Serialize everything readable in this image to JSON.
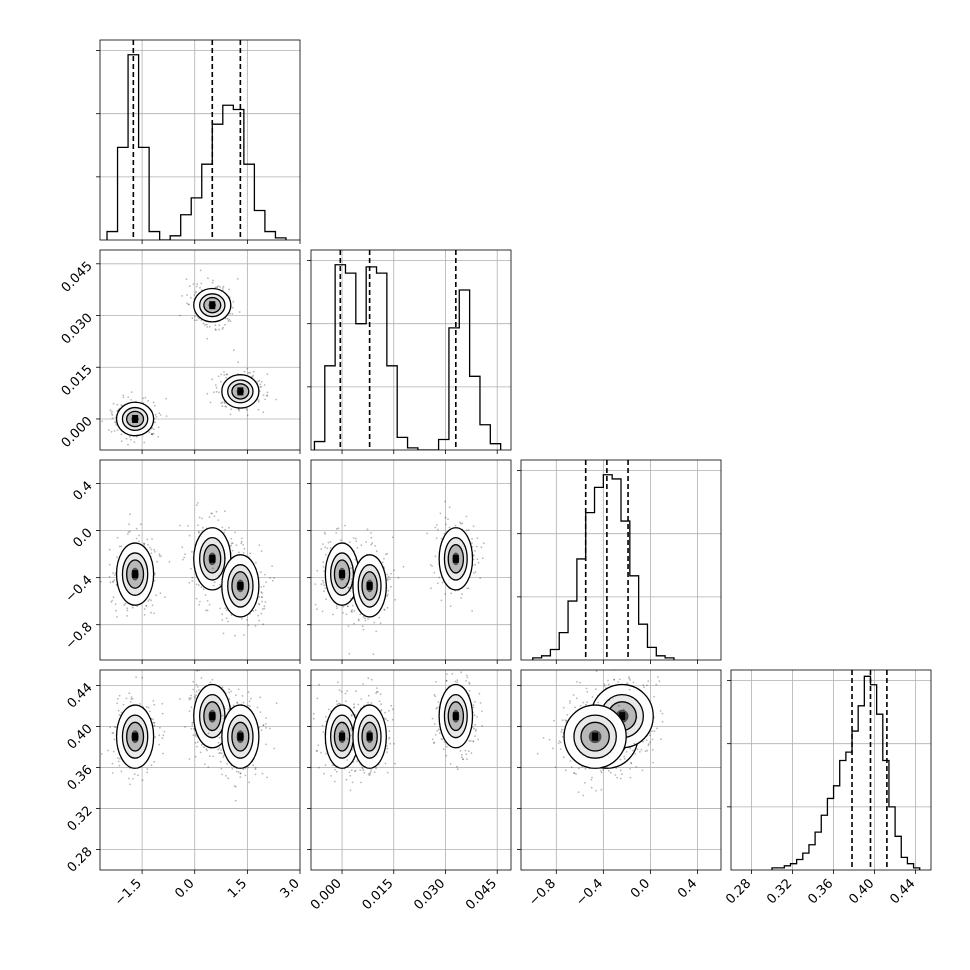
{
  "chart_data": {
    "type": "corner",
    "grid": true,
    "params": [
      {
        "range": [
          -2.7,
          3.0
        ],
        "ticks": [
          -1.5,
          0.0,
          1.5,
          3.0
        ],
        "tick_labels": [
          "−1.5",
          "0.0",
          "1.5",
          "3.0"
        ]
      },
      {
        "range": [
          -0.009,
          0.049
        ],
        "ticks": [
          0.0,
          0.015,
          0.03,
          0.045
        ],
        "tick_labels": [
          "0.000",
          "0.015",
          "0.030",
          "0.045"
        ]
      },
      {
        "range": [
          -1.1,
          0.6
        ],
        "ticks": [
          -0.8,
          -0.4,
          0.0,
          0.4
        ],
        "tick_labels": [
          "−0.8",
          "−0.4",
          "0.0",
          "0.4"
        ]
      },
      {
        "range": [
          0.26,
          0.455
        ],
        "ticks": [
          0.28,
          0.32,
          0.36,
          0.4,
          0.44
        ],
        "tick_labels": [
          "0.28",
          "0.32",
          "0.36",
          "0.40",
          "0.44"
        ]
      }
    ],
    "histograms": [
      {
        "edges": [
          -2.5,
          -2.2,
          -1.9,
          -1.6,
          -1.3,
          -1.0,
          -0.7,
          -0.4,
          -0.1,
          0.2,
          0.5,
          0.8,
          1.1,
          1.4,
          1.7,
          2.0,
          2.3,
          2.6
        ],
        "counts": [
          4,
          44,
          88,
          44,
          4,
          0,
          2,
          12,
          20,
          36,
          55,
          64,
          62,
          36,
          14,
          4,
          1
        ],
        "ymax": 95,
        "quantiles": [
          -1.75,
          0.5,
          1.3
        ]
      },
      {
        "edges": [
          -0.008,
          -0.005,
          -0.002,
          0.001,
          0.004,
          0.007,
          0.01,
          0.013,
          0.016,
          0.019,
          0.022,
          0.025,
          0.028,
          0.031,
          0.034,
          0.037,
          0.04,
          0.043,
          0.046
        ],
        "counts": [
          4,
          40,
          88,
          84,
          60,
          87,
          84,
          40,
          6,
          1,
          0,
          0,
          5,
          58,
          76,
          35,
          12,
          3
        ],
        "ymax": 95,
        "quantiles": [
          -0.0005,
          0.008,
          0.033
        ]
      },
      {
        "edges": [
          -1.0,
          -0.925,
          -0.85,
          -0.775,
          -0.7,
          -0.625,
          -0.55,
          -0.475,
          -0.4,
          -0.325,
          -0.25,
          -0.175,
          -0.1,
          -0.025,
          0.05,
          0.125,
          0.2
        ],
        "counts": [
          1,
          2,
          5,
          13,
          28,
          48,
          70,
          82,
          88,
          86,
          66,
          40,
          17,
          6,
          2,
          1
        ],
        "ymax": 95,
        "quantiles": [
          -0.55,
          -0.37,
          -0.19
        ]
      },
      {
        "edges": [
          0.3,
          0.306,
          0.312,
          0.318,
          0.324,
          0.33,
          0.336,
          0.342,
          0.348,
          0.354,
          0.36,
          0.366,
          0.372,
          0.378,
          0.384,
          0.39,
          0.396,
          0.402,
          0.408,
          0.414,
          0.42,
          0.426,
          0.432,
          0.438,
          0.444
        ],
        "counts": [
          1,
          1,
          2,
          3,
          5,
          8,
          12,
          18,
          26,
          34,
          40,
          52,
          56,
          66,
          78,
          92,
          88,
          74,
          52,
          30,
          16,
          6,
          3,
          1
        ],
        "ymax": 95,
        "quantiles": [
          0.378,
          0.396,
          0.412
        ]
      }
    ],
    "clusters": [
      {
        "x0": -1.7,
        "x1": 0.0,
        "x2": -0.37,
        "x3": 0.39
      },
      {
        "x0": 0.5,
        "x1": 0.033,
        "x2": -0.24,
        "x3": 0.41
      },
      {
        "x0": 1.3,
        "x1": 0.008,
        "x2": -0.47,
        "x3": 0.39
      }
    ]
  }
}
